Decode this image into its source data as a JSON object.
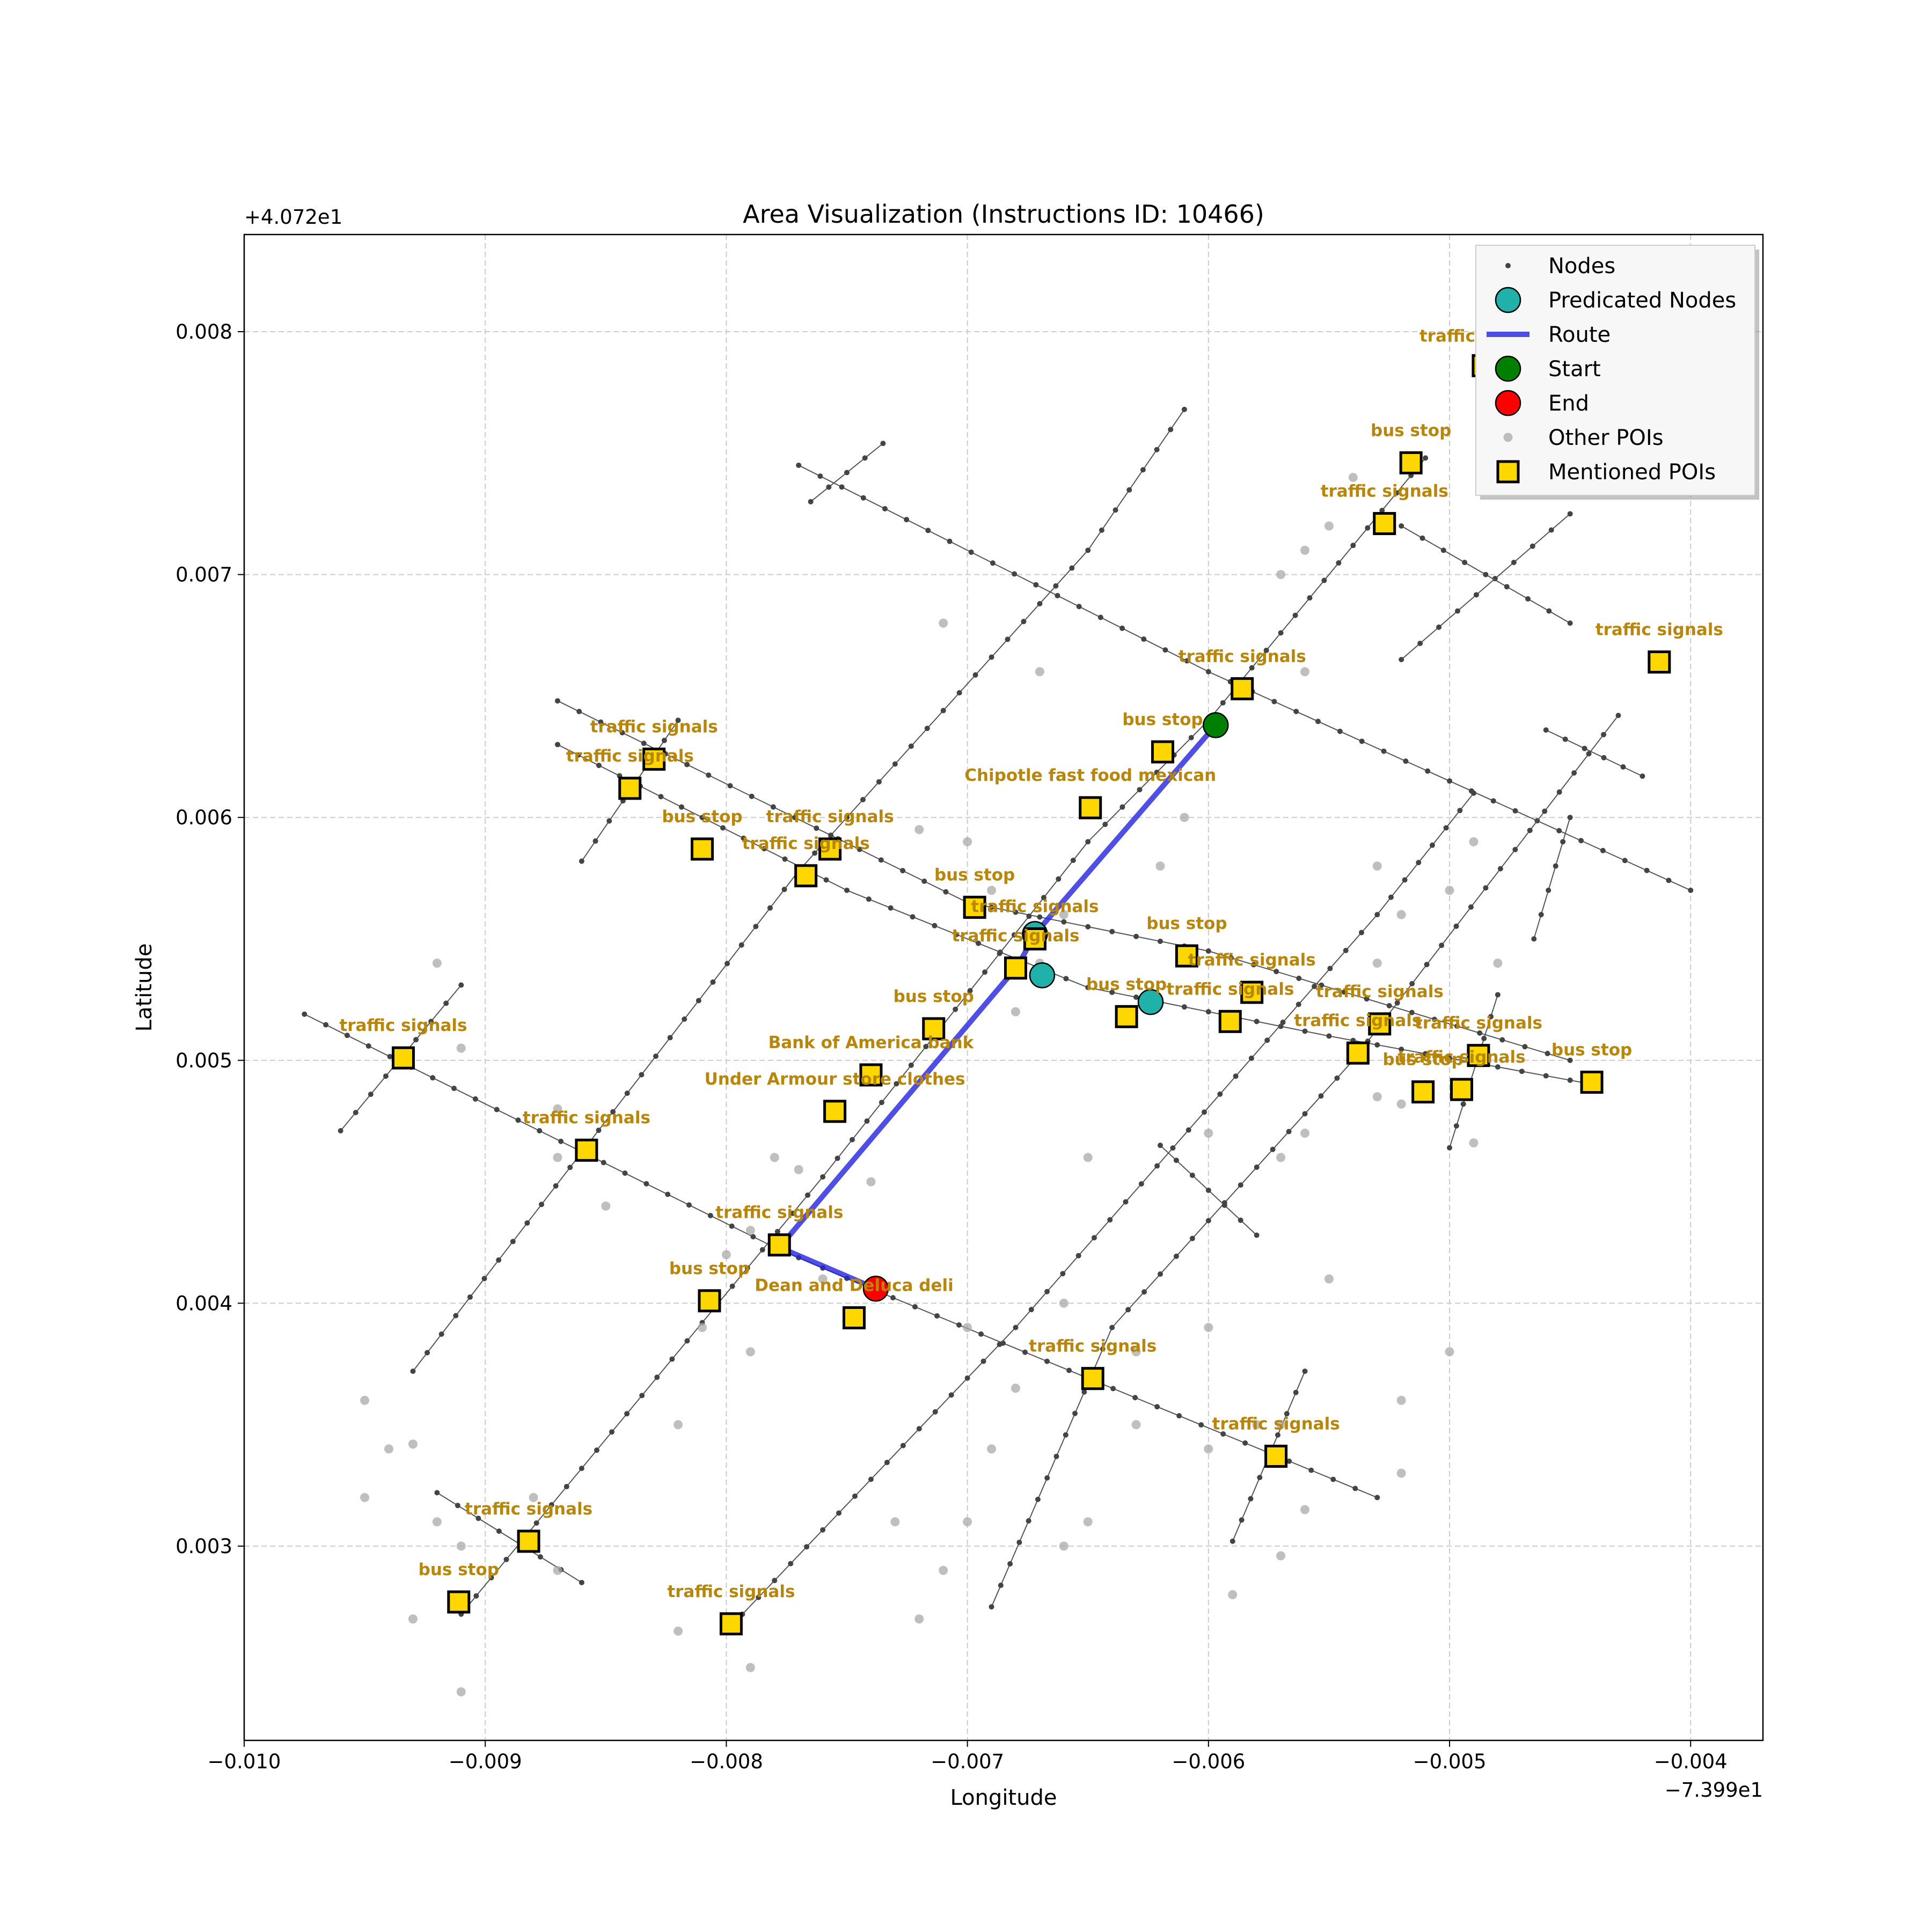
{
  "chart_data": {
    "type": "scatter",
    "title": "Area Visualization (Instructions ID: 10466)",
    "xlabel": "Longitude",
    "ylabel": "Latitude",
    "x_offset_label": "−7.399e1",
    "y_offset_label": "+4.072e1",
    "xlim": [
      -0.01,
      -0.0037
    ],
    "ylim": [
      0.0022,
      0.0084
    ],
    "x_ticks": [
      -0.01,
      -0.009,
      -0.008,
      -0.007,
      -0.006,
      -0.005,
      -0.004
    ],
    "x_tick_labels": [
      "−0.010",
      "−0.009",
      "−0.008",
      "−0.007",
      "−0.006",
      "−0.005",
      "−0.004"
    ],
    "y_ticks": [
      0.003,
      0.004,
      0.005,
      0.006,
      0.007,
      0.008
    ],
    "y_tick_labels": [
      "0.003",
      "0.004",
      "0.005",
      "0.006",
      "0.007",
      "0.008"
    ],
    "grid": true,
    "legend_position": "top-right",
    "legend": [
      {
        "label": "Nodes",
        "marker": "node"
      },
      {
        "label": "Predicated Nodes",
        "marker": "predicated"
      },
      {
        "label": "Route",
        "marker": "route"
      },
      {
        "label": "Start",
        "marker": "start"
      },
      {
        "label": "End",
        "marker": "end"
      },
      {
        "label": "Other POIs",
        "marker": "other"
      },
      {
        "label": "Mentioned POIs",
        "marker": "mentioned"
      }
    ],
    "colors": {
      "node": "#444444",
      "edge": "#555555",
      "predicated": "#20b2aa",
      "route": "#2323e0",
      "start": "#008000",
      "end": "#ff0000",
      "other_poi": "#a9a9a9",
      "mentioned_poi": "#ffd700",
      "poi_label": "#b8860b",
      "grid": "#cccccc"
    },
    "streets": [
      [
        [
          -0.0077,
          0.00745
        ],
        [
          -0.006,
          0.0066
        ],
        [
          -0.004,
          0.0057
        ]
      ],
      [
        [
          -0.0087,
          0.00648
        ],
        [
          -0.007,
          0.00565
        ],
        [
          -0.006,
          0.00545
        ],
        [
          -0.0045,
          0.005
        ]
      ],
      [
        [
          -0.0087,
          0.0063
        ],
        [
          -0.0075,
          0.0057
        ],
        [
          -0.0065,
          0.0053
        ],
        [
          -0.0055,
          0.0051
        ],
        [
          -0.0044,
          0.0049
        ]
      ],
      [
        [
          -0.00975,
          0.00519
        ],
        [
          -0.0078,
          0.00423
        ],
        [
          -0.0074,
          0.00406
        ],
        [
          -0.0053,
          0.0032
        ]
      ],
      [
        [
          -0.0092,
          0.00322
        ],
        [
          -0.0086,
          0.00285
        ]
      ],
      [
        [
          -0.0093,
          0.00372
        ],
        [
          -0.0077,
          0.00578
        ],
        [
          -0.0065,
          0.0071
        ],
        [
          -0.0061,
          0.00768
        ]
      ],
      [
        [
          -0.0091,
          0.00272
        ],
        [
          -0.0076,
          0.00452
        ],
        [
          -0.0065,
          0.0059
        ],
        [
          -0.006,
          0.0064
        ],
        [
          -0.0054,
          0.00712
        ],
        [
          -0.0051,
          0.00748
        ]
      ],
      [
        [
          -0.008,
          0.00265
        ],
        [
          -0.0068,
          0.0039
        ],
        [
          -0.0053,
          0.0056
        ],
        [
          -0.0049,
          0.0061
        ]
      ],
      [
        [
          -0.0069,
          0.00275
        ],
        [
          -0.0064,
          0.0039
        ],
        [
          -0.0054,
          0.005
        ],
        [
          -0.0043,
          0.00642
        ]
      ],
      [
        [
          -0.0096,
          0.00471
        ],
        [
          -0.0091,
          0.00531
        ]
      ],
      [
        [
          -0.0086,
          0.00582
        ],
        [
          -0.0082,
          0.0064
        ]
      ],
      [
        [
          -0.00765,
          0.0073
        ],
        [
          -0.00735,
          0.00754
        ]
      ],
      [
        [
          -0.0052,
          0.00665
        ],
        [
          -0.0045,
          0.00725
        ]
      ],
      [
        [
          -0.0052,
          0.0072
        ],
        [
          -0.0045,
          0.0068
        ]
      ],
      [
        [
          -0.0046,
          0.00636
        ],
        [
          -0.0042,
          0.00617
        ]
      ],
      [
        [
          -0.00465,
          0.0055
        ],
        [
          -0.0045,
          0.006
        ]
      ],
      [
        [
          -0.005,
          0.00464
        ],
        [
          -0.0048,
          0.00527
        ]
      ],
      [
        [
          -0.0062,
          0.00465
        ],
        [
          -0.0058,
          0.00428
        ]
      ],
      [
        [
          -0.0059,
          0.00302
        ],
        [
          -0.0056,
          0.00372
        ]
      ]
    ],
    "route": [
      [
        -0.00597,
        0.00638
      ],
      [
        -0.00672,
        0.00552
      ],
      [
        -0.00679,
        0.00539
      ],
      [
        -0.00778,
        0.00423
      ],
      [
        -0.00738,
        0.00406
      ]
    ],
    "start": {
      "x": -0.00597,
      "y": 0.00638
    },
    "end": {
      "x": -0.00738,
      "y": 0.00406
    },
    "predicated_nodes": [
      [
        -0.00672,
        0.00552
      ],
      [
        -0.00669,
        0.00535
      ],
      [
        -0.00624,
        0.00524
      ]
    ],
    "other_pois": [
      [
        -0.0092,
        0.0054
      ],
      [
        -0.0091,
        0.00505
      ],
      [
        -0.0087,
        0.0048
      ],
      [
        -0.0087,
        0.0046
      ],
      [
        -0.0085,
        0.0044
      ],
      [
        -0.0067,
        0.0066
      ],
      [
        -0.0071,
        0.0068
      ],
      [
        -0.0072,
        0.00595
      ],
      [
        -0.007,
        0.0059
      ],
      [
        -0.0069,
        0.0057
      ],
      [
        -0.0068,
        0.0052
      ],
      [
        -0.0067,
        0.0054
      ],
      [
        -0.0066,
        0.0056
      ],
      [
        -0.0061,
        0.006
      ],
      [
        -0.0062,
        0.0058
      ],
      [
        -0.0057,
        0.007
      ],
      [
        -0.0056,
        0.0071
      ],
      [
        -0.0055,
        0.0072
      ],
      [
        -0.0054,
        0.0074
      ],
      [
        -0.0056,
        0.0066
      ],
      [
        -0.0053,
        0.0058
      ],
      [
        -0.0052,
        0.0056
      ],
      [
        -0.005,
        0.0057
      ],
      [
        -0.0049,
        0.0059
      ],
      [
        -0.0048,
        0.0054
      ],
      [
        -0.0049,
        0.00466
      ],
      [
        -0.0051,
        0.0049
      ],
      [
        -0.0053,
        0.00485
      ],
      [
        -0.0052,
        0.00482
      ],
      [
        -0.0053,
        0.0054
      ],
      [
        -0.0078,
        0.0046
      ],
      [
        -0.0077,
        0.00455
      ],
      [
        -0.0074,
        0.0045
      ],
      [
        -0.0079,
        0.0043
      ],
      [
        -0.008,
        0.0042
      ],
      [
        -0.0081,
        0.0039
      ],
      [
        -0.0079,
        0.0038
      ],
      [
        -0.0076,
        0.0041
      ],
      [
        -0.007,
        0.0039
      ],
      [
        -0.0068,
        0.00365
      ],
      [
        -0.0066,
        0.004
      ],
      [
        -0.0063,
        0.0038
      ],
      [
        -0.006,
        0.0039
      ],
      [
        -0.0063,
        0.0035
      ],
      [
        -0.006,
        0.0034
      ],
      [
        -0.0057,
        0.0035
      ],
      [
        -0.0056,
        0.00315
      ],
      [
        -0.0057,
        0.00296
      ],
      [
        -0.0059,
        0.0028
      ],
      [
        -0.0052,
        0.0036
      ],
      [
        -0.0052,
        0.0033
      ],
      [
        -0.005,
        0.0038
      ],
      [
        -0.0055,
        0.0041
      ],
      [
        -0.006,
        0.0047
      ],
      [
        -0.0057,
        0.0046
      ],
      [
        -0.0065,
        0.0046
      ],
      [
        -0.0095,
        0.0036
      ],
      [
        -0.0094,
        0.0034
      ],
      [
        -0.0093,
        0.00342
      ],
      [
        -0.0095,
        0.0032
      ],
      [
        -0.0092,
        0.0031
      ],
      [
        -0.0091,
        0.003
      ],
      [
        -0.0088,
        0.0032
      ],
      [
        -0.0087,
        0.0029
      ],
      [
        -0.0093,
        0.0027
      ],
      [
        -0.0091,
        0.0024
      ],
      [
        -0.0082,
        0.0035
      ],
      [
        -0.0082,
        0.00265
      ],
      [
        -0.0079,
        0.0025
      ],
      [
        -0.0073,
        0.0031
      ],
      [
        -0.0071,
        0.0029
      ],
      [
        -0.007,
        0.0031
      ],
      [
        -0.0072,
        0.0027
      ],
      [
        -0.0066,
        0.003
      ],
      [
        -0.0069,
        0.0034
      ],
      [
        -0.0065,
        0.0031
      ],
      [
        -0.0058,
        0.0035
      ],
      [
        -0.0056,
        0.0047
      ]
    ],
    "mentioned_pois": [
      {
        "x": -0.00586,
        "y": 0.00653,
        "label": "traffic signals",
        "dx": 0,
        "dy": -50
      },
      {
        "x": -0.00619,
        "y": 0.00627,
        "label": "bus stop",
        "dx": 0,
        "dy": -50
      },
      {
        "x": -0.00649,
        "y": 0.00604,
        "label": "Chipotle fast food mexican",
        "dx": 0,
        "dy": -50
      },
      {
        "x": -0.00527,
        "y": 0.00721,
        "label": "traffic signals",
        "dx": 0,
        "dy": -50
      },
      {
        "x": -0.00516,
        "y": 0.00746,
        "label": "bus stop",
        "dx": 0,
        "dy": -50
      },
      {
        "x": -0.00486,
        "y": 0.00786,
        "label": "traffic signals",
        "dx": 0,
        "dy": -45
      },
      {
        "x": -0.00413,
        "y": 0.00664,
        "label": "traffic signals",
        "dx": 0,
        "dy": -50
      },
      {
        "x": -0.0083,
        "y": 0.00624,
        "label": "traffic signals",
        "dx": 0,
        "dy": -50
      },
      {
        "x": -0.0084,
        "y": 0.00612,
        "label": "traffic signals",
        "dx": 0,
        "dy": -50
      },
      {
        "x": -0.0081,
        "y": 0.00587,
        "label": "bus stop",
        "dx": 0,
        "dy": -50
      },
      {
        "x": -0.00757,
        "y": 0.00587,
        "label": "traffic signals",
        "dx": 0,
        "dy": -50
      },
      {
        "x": -0.00767,
        "y": 0.00576,
        "label": "traffic signals",
        "dx": 0,
        "dy": -50
      },
      {
        "x": -0.00697,
        "y": 0.00563,
        "label": "bus stop",
        "dx": 0,
        "dy": -50
      },
      {
        "x": -0.00672,
        "y": 0.0055,
        "label": "traffic signals",
        "dx": 0,
        "dy": -50
      },
      {
        "x": -0.0068,
        "y": 0.00538,
        "label": "traffic signals",
        "dx": 0,
        "dy": -50
      },
      {
        "x": -0.00609,
        "y": 0.00543,
        "label": "bus stop",
        "dx": 0,
        "dy": -50
      },
      {
        "x": -0.00582,
        "y": 0.00528,
        "label": "traffic signals",
        "dx": 0,
        "dy": -50
      },
      {
        "x": -0.00634,
        "y": 0.00518,
        "label": "bus stop",
        "dx": 0,
        "dy": -50
      },
      {
        "x": -0.00591,
        "y": 0.00516,
        "label": "traffic signals",
        "dx": 0,
        "dy": -50
      },
      {
        "x": -0.00529,
        "y": 0.00515,
        "label": "traffic signals",
        "dx": 0,
        "dy": -50
      },
      {
        "x": -0.00538,
        "y": 0.00503,
        "label": "traffic signals",
        "dx": 0,
        "dy": -50
      },
      {
        "x": -0.00488,
        "y": 0.00502,
        "label": "traffic signals",
        "dx": 0,
        "dy": -50
      },
      {
        "x": -0.00511,
        "y": 0.00487,
        "label": "bus stop",
        "dx": 0,
        "dy": -50
      },
      {
        "x": -0.00495,
        "y": 0.00488,
        "label": "traffic signals",
        "dx": 0,
        "dy": -50
      },
      {
        "x": -0.00441,
        "y": 0.00491,
        "label": "bus stop",
        "dx": 0,
        "dy": -50
      },
      {
        "x": -0.00714,
        "y": 0.00513,
        "label": "bus stop",
        "dx": 0,
        "dy": -50
      },
      {
        "x": -0.0074,
        "y": 0.00494,
        "label": "Bank of America bank",
        "dx": 0,
        "dy": -50
      },
      {
        "x": -0.00755,
        "y": 0.00479,
        "label": "Under Armour store clothes",
        "dx": 0,
        "dy": -50
      },
      {
        "x": -0.00934,
        "y": 0.00501,
        "label": "traffic signals",
        "dx": 0,
        "dy": -50
      },
      {
        "x": -0.00858,
        "y": 0.00463,
        "label": "traffic signals",
        "dx": 0,
        "dy": -50
      },
      {
        "x": -0.00778,
        "y": 0.00424,
        "label": "traffic signals",
        "dx": 0,
        "dy": -50
      },
      {
        "x": -0.00807,
        "y": 0.00401,
        "label": "bus stop",
        "dx": 0,
        "dy": -50
      },
      {
        "x": -0.00747,
        "y": 0.00394,
        "label": "Dean and Deluca deli",
        "dx": 0,
        "dy": -50
      },
      {
        "x": -0.00648,
        "y": 0.00369,
        "label": "traffic signals",
        "dx": 0,
        "dy": -50
      },
      {
        "x": -0.00572,
        "y": 0.00337,
        "label": "traffic signals",
        "dx": 0,
        "dy": -50
      },
      {
        "x": -0.00882,
        "y": 0.00302,
        "label": "traffic signals",
        "dx": 0,
        "dy": -50
      },
      {
        "x": -0.00911,
        "y": 0.00277,
        "label": "bus stop",
        "dx": 0,
        "dy": -50
      },
      {
        "x": -0.00798,
        "y": 0.00268,
        "label": "traffic signals",
        "dx": 0,
        "dy": -50
      }
    ]
  }
}
